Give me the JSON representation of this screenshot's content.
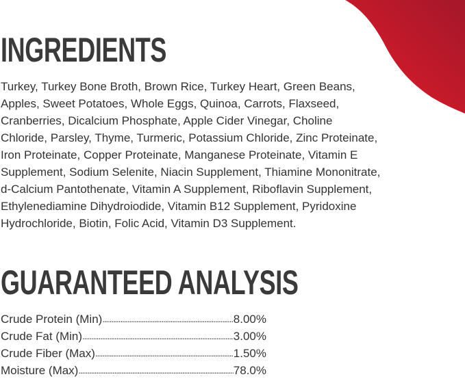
{
  "colors": {
    "accent_red": "#e31b2b",
    "dark_red": "#a3182a"
  },
  "ingredients": {
    "title": "INGREDIENTS",
    "lines": [
      "Turkey, Turkey Bone Broth, Brown Rice, Turkey Heart, Green Beans,",
      "Apples, Sweet Potatoes, Whole Eggs, Quinoa, Carrots, Flaxseed,",
      "Cranberries, Dicalcium Phosphate, Apple Cider Vinegar, Choline",
      "Chloride, Parsley, Thyme, Turmeric, Potassium Chloride, Zinc Proteinate,",
      "Iron Proteinate, Copper Proteinate, Manganese Proteinate, Vitamin E",
      "Supplement, Sodium Selenite, Niacin Supplement, Thiamine Mononitrate,",
      "d-Calcium Pantothenate, Vitamin A Supplement, Riboflavin Supplement,",
      "Ethylenediamine Dihydroiodide, Vitamin B12 Supplement, Pyridoxine",
      "Hydrochloride, Biotin, Folic Acid, Vitamin D3 Supplement."
    ]
  },
  "analysis": {
    "title": "GUARANTEED ANALYSIS",
    "rows": [
      {
        "label": "Crude Protein (Min)",
        "value": "8.00%"
      },
      {
        "label": "Crude Fat (Min)",
        "value": "3.00%"
      },
      {
        "label": "Crude Fiber (Max)",
        "value": "1.50%"
      },
      {
        "label": "Moisture (Max)",
        "value": "78.0%"
      }
    ]
  }
}
